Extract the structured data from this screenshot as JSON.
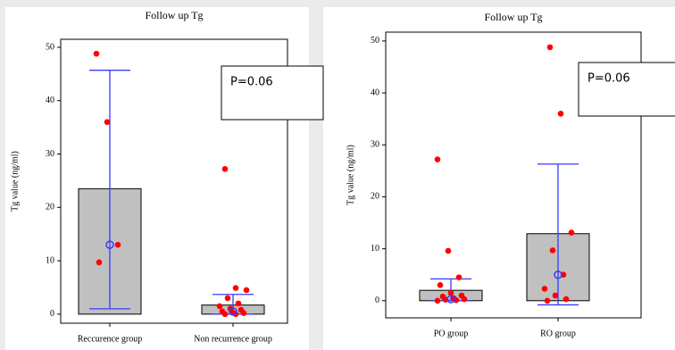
{
  "chart_data": [
    {
      "type": "box",
      "title": "Follow up Tg",
      "y_label": "Tg value (ng/ml)",
      "annotation": "P=0.06",
      "categories": [
        "Reccurence group",
        "Non recurrence group"
      ],
      "ylim": [
        -1.7,
        51.5
      ],
      "yticks": [
        0,
        10,
        20,
        30,
        40,
        50
      ],
      "box_color": "#c0c0c0",
      "whisker_color": "#3a3aff",
      "point_color": "#ff0000",
      "box_low": [
        0,
        0
      ],
      "box_high": [
        23.5,
        1.7
      ],
      "whisker_low": [
        1,
        0
      ],
      "whisker_high": [
        45.7,
        3.7
      ],
      "mean": [
        13,
        0.5
      ],
      "points": [
        [
          48.8,
          36,
          13,
          9.7
        ],
        [
          27.2,
          4.9,
          4.5,
          3,
          2,
          1.5,
          1,
          0.8,
          0.5,
          0.3,
          0.2,
          0,
          0
        ]
      ]
    },
    {
      "type": "box",
      "title": "Follow up Tg",
      "y_label": "Tg value (ng/ml)",
      "annotation": "P=0.06",
      "categories": [
        "PO group",
        "RO group"
      ],
      "ylim": [
        -3.3,
        51.7
      ],
      "yticks": [
        0,
        10,
        20,
        30,
        40,
        50
      ],
      "box_color": "#c0c0c0",
      "whisker_color": "#3a3aff",
      "point_color": "#ff0000",
      "box_low": [
        0,
        0
      ],
      "box_high": [
        2,
        12.9
      ],
      "whisker_low": [
        0,
        -0.8
      ],
      "whisker_high": [
        4.2,
        26.3
      ],
      "mean": [
        0.3,
        5
      ],
      "points": [
        [
          27.2,
          9.6,
          4.5,
          3,
          1.5,
          1,
          0.8,
          0.5,
          0.3,
          0.2,
          0.1,
          0
        ],
        [
          48.8,
          36,
          13.1,
          9.7,
          5,
          2.3,
          1,
          0.3,
          0
        ]
      ]
    }
  ]
}
